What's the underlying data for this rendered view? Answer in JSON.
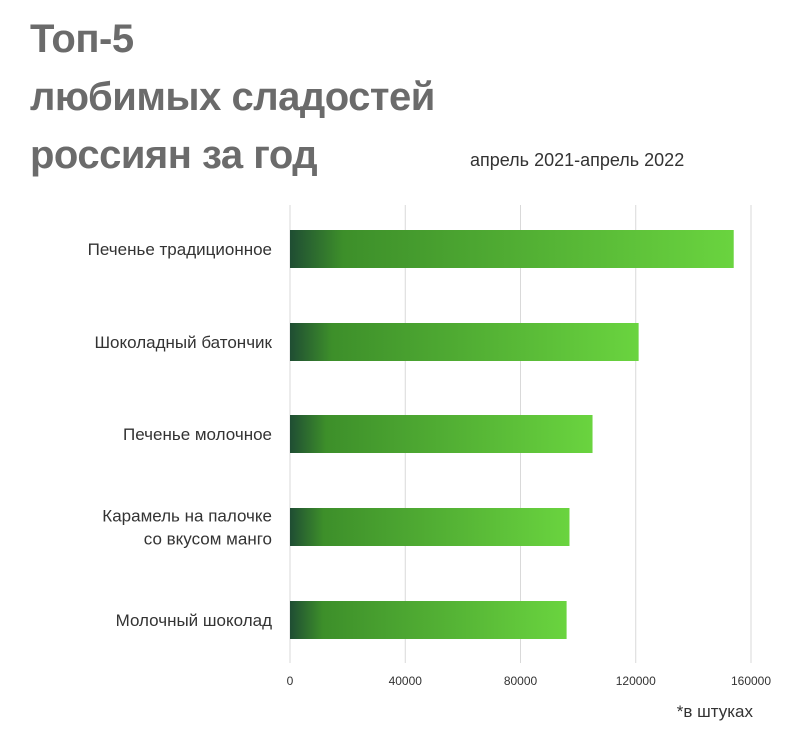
{
  "header": {
    "title_lines": [
      "Топ-5",
      "любимых сладостей",
      "россиян за год"
    ],
    "period": "апрель 2021-апрель 2022"
  },
  "footnote": "*в штуках",
  "colors": {
    "bar_dark": "#1f4d33",
    "bar_mid": "#3d8f2a",
    "bar_light": "#6ad43f",
    "grid": "#d9d9d9",
    "title": "#6b6b6b"
  },
  "chart_data": {
    "type": "bar",
    "orientation": "horizontal",
    "categories": [
      [
        "Печенье традиционное"
      ],
      [
        "Шоколадный батончик"
      ],
      [
        "Печенье молочное"
      ],
      [
        "Карамель на палочке",
        "со вкусом манго"
      ],
      [
        "Молочный шоколад"
      ]
    ],
    "values": [
      154000,
      121000,
      105000,
      97000,
      96000
    ],
    "xlim": [
      0,
      160000
    ],
    "xticks": [
      0,
      40000,
      80000,
      120000,
      160000
    ],
    "xtick_labels": [
      "0",
      "40000",
      "80000",
      "120000",
      "160000"
    ],
    "grid": true,
    "legend": "none"
  }
}
